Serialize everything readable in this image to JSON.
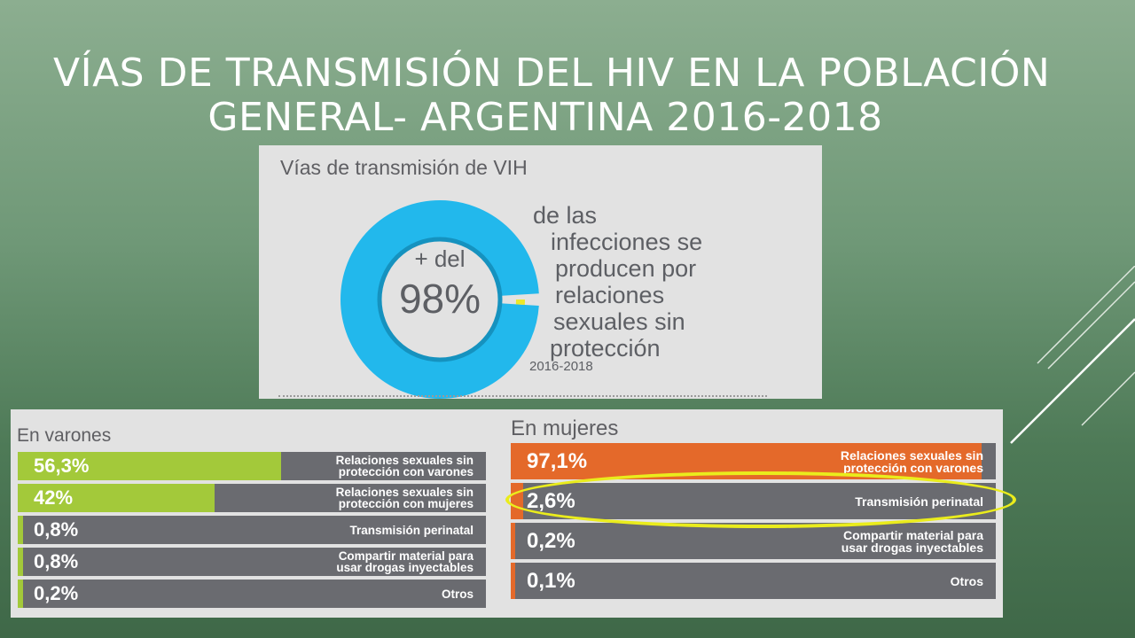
{
  "slide_title": [
    "VÍAS DE TRANSMISIÓN DEL HIV EN LA POBLACIÓN",
    "GENERAL- ARGENTINA 2016-2018"
  ],
  "top_panel": {
    "title": "Vías de transmisión de VIH",
    "prefix": "+ del",
    "big_value": "98%",
    "description_lines": [
      "de las",
      "infecciones se",
      "producen por",
      "relaciones",
      "sexuales sin",
      "protección"
    ],
    "period": "2016-2018"
  },
  "chart_data": [
    {
      "type": "pie",
      "variant": "donut",
      "values": [
        98,
        2
      ],
      "colors": [
        "#22b8ec",
        "#ece82a"
      ]
    },
    {
      "type": "bar",
      "title": "En varones",
      "categories": [
        "Relaciones sexuales sin protección con varones",
        "Relaciones sexuales sin protección con mujeres",
        "Transmisión perinatal",
        "Compartir material para usar drogas inyectables",
        "Otros"
      ],
      "label_lines": [
        [
          "Relaciones sexuales sin",
          "protección con varones"
        ],
        [
          "Relaciones sexuales sin",
          "protección con mujeres"
        ],
        [
          "Transmisión perinatal"
        ],
        [
          "Compartir material para",
          "usar drogas inyectables"
        ],
        [
          "Otros"
        ]
      ],
      "values": [
        56.3,
        42,
        0.8,
        0.8,
        0.2
      ],
      "value_labels": [
        "56,3%",
        "42%",
        "0,8%",
        "0,8%",
        "0,2%"
      ],
      "xlim": [
        0,
        100
      ],
      "color": "#a3c93a"
    },
    {
      "type": "bar",
      "title": "En mujeres",
      "categories": [
        "Relaciones sexuales sin protección con varones",
        "Transmisión perinatal",
        "Compartir material para usar drogas inyectables",
        "Otros"
      ],
      "label_lines": [
        [
          "Relaciones sexuales sin",
          "protección con varones"
        ],
        [
          "Transmisión perinatal"
        ],
        [
          "Compartir material para",
          "usar drogas inyectables"
        ],
        [
          "Otros"
        ]
      ],
      "values": [
        97.1,
        2.6,
        0.2,
        0.1
      ],
      "value_labels": [
        "97,1%",
        "2,6%",
        "0,2%",
        "0,1%"
      ],
      "xlim": [
        0,
        100
      ],
      "color": "#e4692a"
    }
  ],
  "colors": {
    "track": "#6a6b70",
    "panel_bg": "#e2e2e2",
    "highlight": "#eaec1c"
  }
}
